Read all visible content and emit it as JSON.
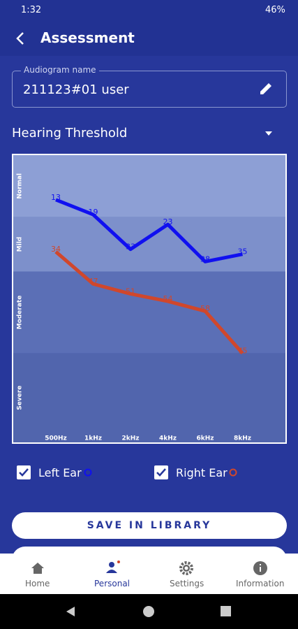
{
  "status_bar": {
    "time": "1:32",
    "battery": "46%"
  },
  "header": {
    "title": "Assessment"
  },
  "audiogram_field": {
    "label": "Audiogram name",
    "value": "211123#01 user"
  },
  "dropdown": {
    "label": "Hearing Threshold"
  },
  "chart_data": {
    "type": "line",
    "categories": [
      "500Hz",
      "1kHz",
      "2kHz",
      "4kHz",
      "6kHz",
      "8kHz"
    ],
    "series": [
      {
        "name": "Left Ear",
        "color": "#1010f0",
        "values": [
          13,
          19,
          33,
          23,
          38,
          35
        ]
      },
      {
        "name": "Right Ear",
        "color": "#d0472c",
        "values": [
          34,
          47,
          51,
          54,
          58,
          75
        ]
      }
    ],
    "ylim": [
      -5,
      111
    ],
    "y_inverted": true,
    "bands": [
      {
        "label": "Normal",
        "from": -5,
        "to": 20,
        "color": "#8d9fd5"
      },
      {
        "label": "Mild",
        "from": 20,
        "to": 42,
        "color": "#7d90cb"
      },
      {
        "label": "Moderate",
        "from": 42,
        "to": 75,
        "color": "#5b6fb6"
      },
      {
        "label": "Severe",
        "from": 75,
        "to": 111,
        "color": "#5165ad"
      }
    ]
  },
  "button": {
    "label": "SAVE IN LIBRARY"
  },
  "nav": {
    "items": [
      "Home",
      "Personal",
      "Settings",
      "Information"
    ]
  }
}
